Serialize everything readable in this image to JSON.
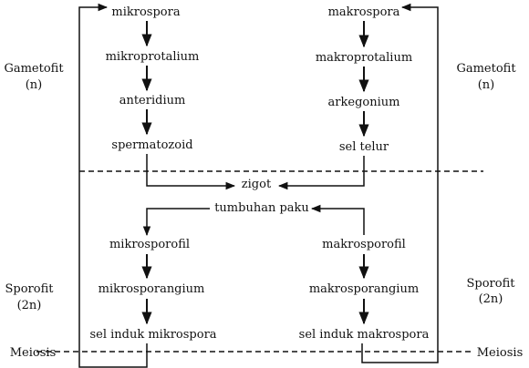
{
  "colors": {
    "line": "#111111",
    "background": "#ffffff"
  },
  "left_column": {
    "nodes": [
      "mikrospora",
      "mikroprotalium",
      "anteridium",
      "spermatozoid"
    ]
  },
  "right_column": {
    "nodes": [
      "makrospora",
      "makroprotalium",
      "arkegonium",
      "sel telur"
    ]
  },
  "center": {
    "zygote": "zigot",
    "sporophyte_plant": "tumbuhan paku"
  },
  "left_sporophyte": {
    "nodes": [
      "mikrosporofil",
      "mikrosporangium",
      "sel induk mikrospora"
    ]
  },
  "right_sporophyte": {
    "nodes": [
      "makrosporofil",
      "makrosporangium",
      "sel induk makrospora"
    ]
  },
  "phase_labels": {
    "gametophyte_left": {
      "name": "Gametofit",
      "ploidy": "(n)"
    },
    "gametophyte_right": {
      "name": "Gametofit",
      "ploidy": "(n)"
    },
    "sporophyte_left": {
      "name": "Sporofit",
      "ploidy": "(2n)"
    },
    "sporophyte_right": {
      "name": "Sporofit",
      "ploidy": "(2n)"
    },
    "meiosis_left": "Meiosis",
    "meiosis_right": "Meiosis"
  }
}
